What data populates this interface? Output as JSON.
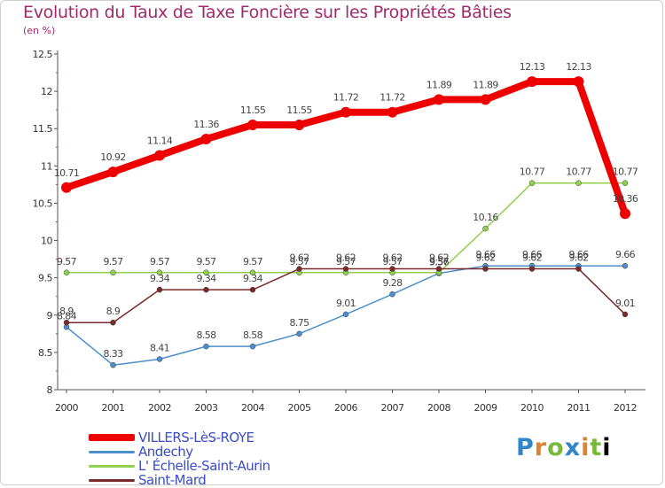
{
  "chart_data": {
    "type": "line",
    "title": "Evolution du Taux de Taxe Foncière sur les Propriétés Bâties",
    "unit_label": "(en %)",
    "x": [
      "2000",
      "2001",
      "2002",
      "2003",
      "2004",
      "2005",
      "2006",
      "2007",
      "2008",
      "2009",
      "2010",
      "2011",
      "2012"
    ],
    "y_ticks": [
      "8",
      "8.5",
      "9",
      "9.5",
      "10",
      "10.5",
      "11",
      "11.5",
      "12",
      "12.5"
    ],
    "ylim": [
      8,
      12.5
    ],
    "grid": false,
    "legend_position": "bottom-left",
    "series": [
      {
        "name": "VILLERS-LèS-ROYE",
        "color": "#ee0000",
        "values": [
          10.71,
          10.92,
          11.14,
          11.36,
          11.55,
          11.55,
          11.72,
          11.72,
          11.89,
          11.89,
          12.13,
          12.13,
          10.36
        ],
        "labels": [
          "10.71",
          "10.92",
          "11.14",
          "11.36",
          "11.55",
          "11.55",
          "11.72",
          "11.72",
          "11.89",
          "11.89",
          "12.13",
          "12.13",
          "10.36"
        ]
      },
      {
        "name": "Andechy",
        "color": "#4d8fcc",
        "values": [
          8.84,
          8.33,
          8.41,
          8.58,
          8.58,
          8.75,
          9.01,
          9.28,
          9.56,
          9.66,
          9.66,
          9.66,
          9.66
        ],
        "labels": [
          "8.84",
          "8.33",
          "8.41",
          "8.58",
          "8.58",
          "8.75",
          "9.01",
          "9.28",
          "9.56",
          "9.66",
          "9.66",
          "9.66",
          "9.66"
        ]
      },
      {
        "name": "L' Échelle-Saint-Aurin",
        "color": "#8fd14f",
        "values": [
          9.57,
          9.57,
          9.57,
          9.57,
          9.57,
          9.57,
          9.57,
          9.57,
          9.57,
          10.16,
          10.77,
          10.77,
          10.77
        ],
        "labels": [
          "9.57",
          "9.57",
          "9.57",
          "9.57",
          "9.57",
          "9.57",
          "9.57",
          "9.57",
          "9.57",
          "10.16",
          "10.77",
          "10.77",
          "10.77"
        ]
      },
      {
        "name": "Saint-Mard",
        "color": "#7a2a2a",
        "values": [
          8.9,
          8.9,
          9.34,
          9.34,
          9.34,
          9.62,
          9.62,
          9.62,
          9.62,
          9.62,
          9.62,
          9.62,
          9.01
        ],
        "labels": [
          "8.9",
          "8.9",
          "9.34",
          "9.34",
          "9.34",
          "9.62",
          "9.62",
          "9.62",
          "9.62",
          "9.62",
          "9.62",
          "9.62",
          "9.01"
        ]
      }
    ]
  },
  "logo_text": "Proxiti"
}
